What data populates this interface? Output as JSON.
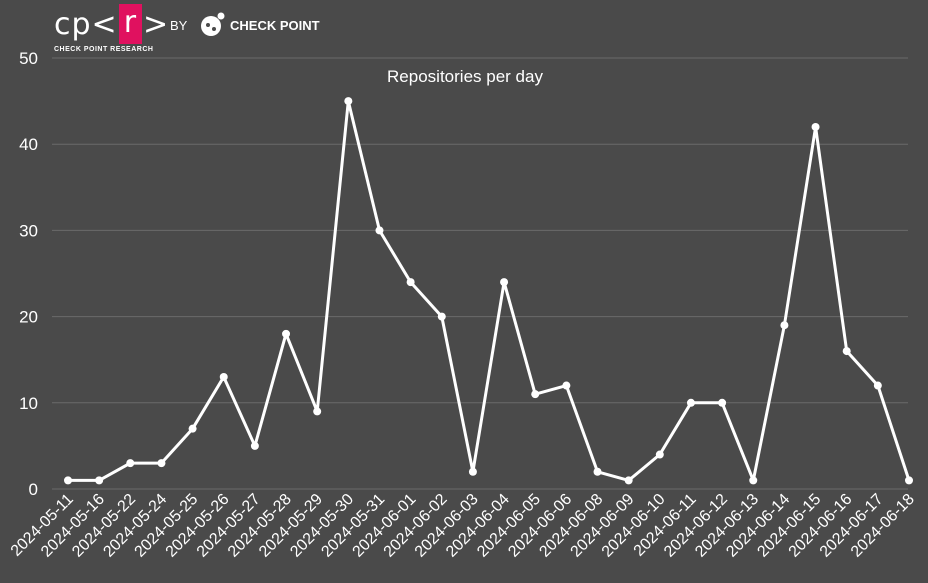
{
  "logo": {
    "cpr_prefix": "cp<",
    "cpr_box": "r",
    "cpr_suffix": ">",
    "cpr_subtitle": "CHECK POINT RESEARCH",
    "by": "BY",
    "company": "CHECK POINT",
    "accent_color": "#e0115f"
  },
  "chart_data": {
    "type": "line",
    "title": "Repositories per day",
    "xlabel": "",
    "ylabel": "",
    "ylim": [
      0,
      50
    ],
    "yticks": [
      0,
      10,
      20,
      30,
      40,
      50
    ],
    "grid": true,
    "categories": [
      "2024-05-11",
      "2024-05-16",
      "2024-05-22",
      "2024-05-24",
      "2024-05-25",
      "2024-05-26",
      "2024-05-27",
      "2024-05-28",
      "2024-05-29",
      "2024-05-30",
      "2024-05-31",
      "2024-06-01",
      "2024-06-02",
      "2024-06-03",
      "2024-06-04",
      "2024-06-05",
      "2024-06-06",
      "2024-06-08",
      "2024-06-09",
      "2024-06-10",
      "2024-06-11",
      "2024-06-12",
      "2024-06-13",
      "2024-06-14",
      "2024-06-15",
      "2024-06-16",
      "2024-06-17",
      "2024-06-18"
    ],
    "values": [
      1,
      1,
      3,
      3,
      7,
      13,
      5,
      18,
      9,
      45,
      30,
      24,
      20,
      2,
      24,
      11,
      12,
      2,
      1,
      4,
      10,
      10,
      1,
      19,
      42,
      16,
      12,
      1
    ],
    "colors": {
      "background": "#4a4a4a",
      "line": "#ffffff",
      "grid": "#6a6a6a"
    }
  }
}
